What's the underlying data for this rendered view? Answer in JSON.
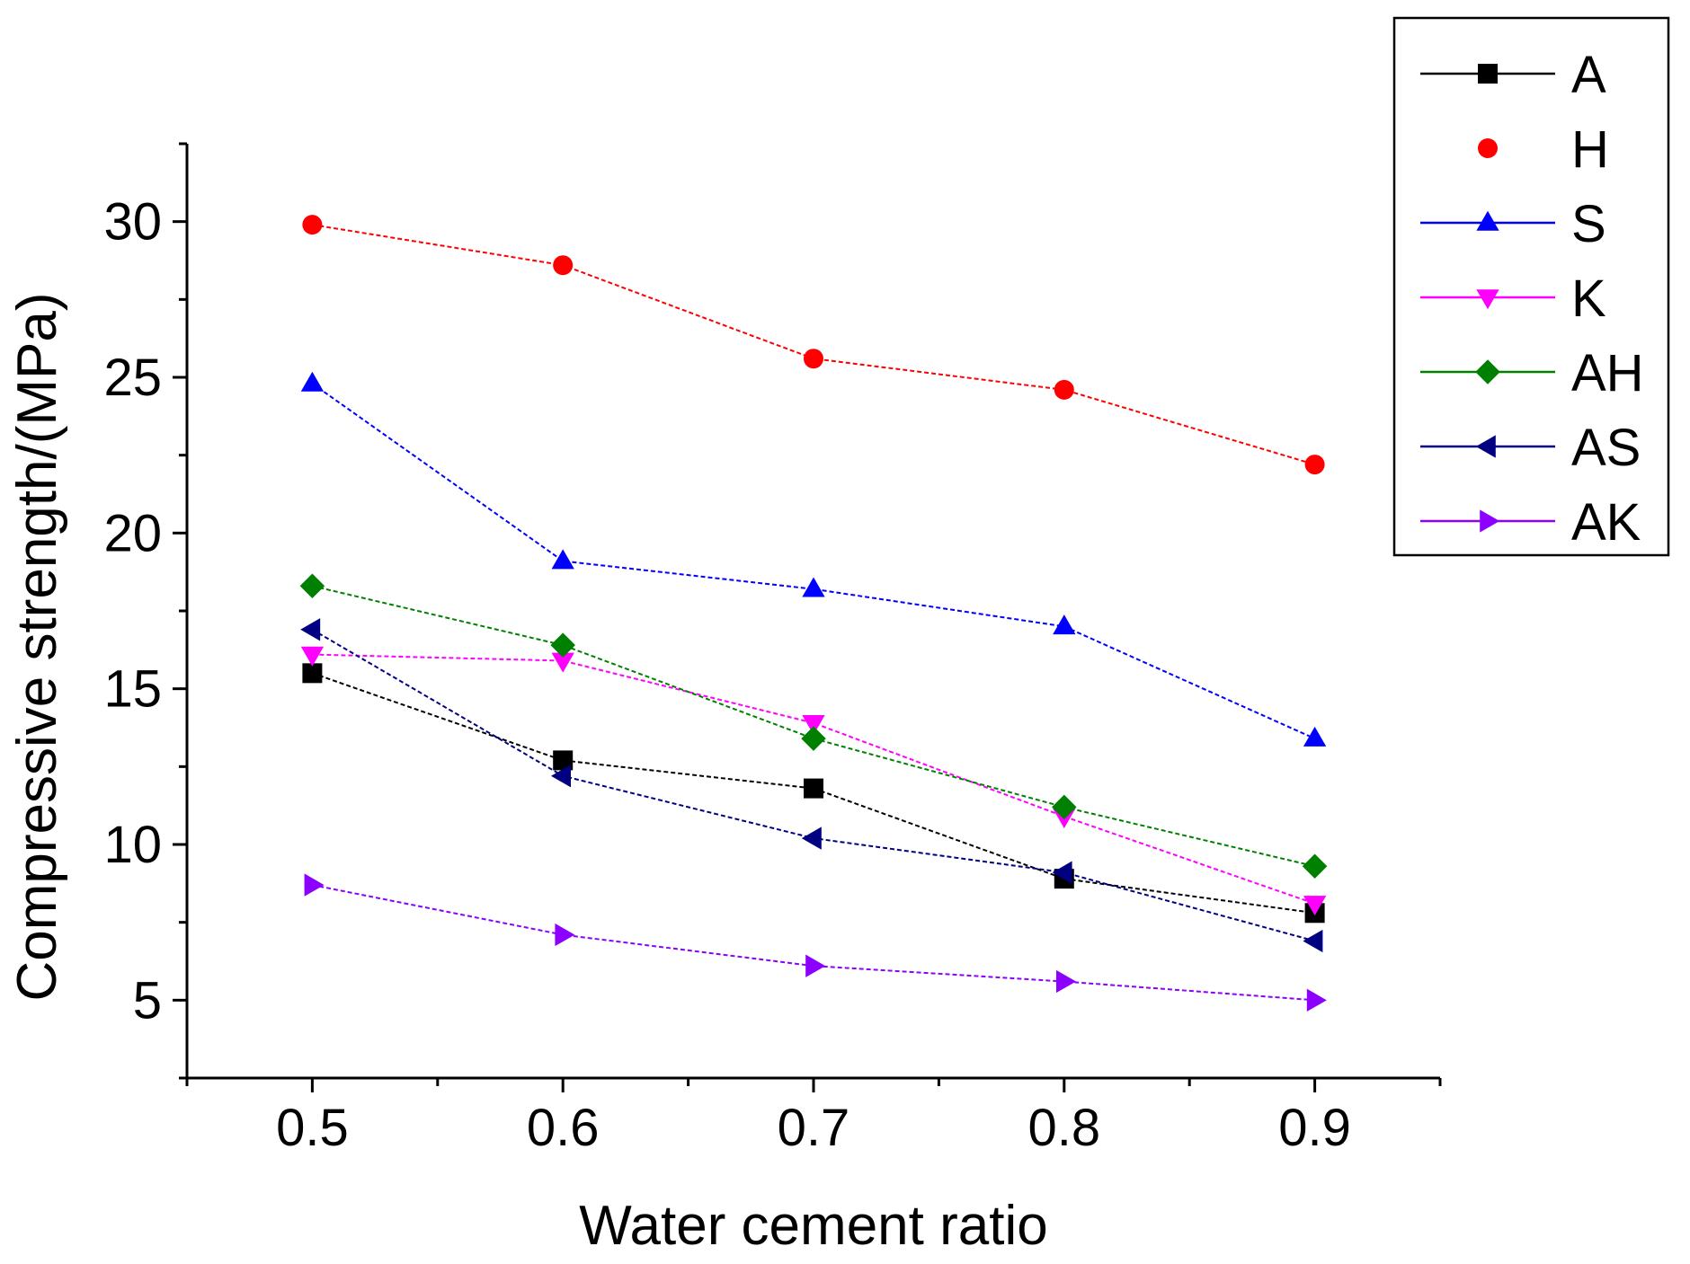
{
  "chart_data": {
    "type": "line",
    "title": "",
    "xlabel": "Water cement ratio",
    "ylabel": "Compressive strength/(MPa)",
    "x": [
      0.5,
      0.6,
      0.7,
      0.8,
      0.9
    ],
    "x_tick_labels": [
      "0.5",
      "0.6",
      "0.7",
      "0.8",
      "0.9"
    ],
    "xlim": [
      0.45,
      0.95
    ],
    "y_ticks": [
      5,
      10,
      15,
      20,
      25,
      30
    ],
    "y_tick_labels": [
      "5",
      "10",
      "15",
      "20",
      "25",
      "30"
    ],
    "ylim": [
      2.5,
      32.5
    ],
    "grid": false,
    "legend_position": "top-right",
    "series": [
      {
        "name": "A",
        "color": "#000000",
        "marker": "square",
        "values": [
          15.5,
          12.7,
          11.8,
          8.9,
          7.8
        ]
      },
      {
        "name": "H",
        "color": "#ff0000",
        "marker": "circle",
        "values": [
          29.9,
          28.6,
          25.6,
          24.6,
          22.2
        ]
      },
      {
        "name": "S",
        "color": "#0000ff",
        "marker": "triangle-up",
        "values": [
          24.8,
          19.1,
          18.2,
          17.0,
          13.4
        ]
      },
      {
        "name": "K",
        "color": "#ff00ff",
        "marker": "triangle-down",
        "values": [
          16.1,
          15.9,
          13.9,
          10.9,
          8.1
        ]
      },
      {
        "name": "AH",
        "color": "#008000",
        "marker": "diamond",
        "values": [
          18.3,
          16.4,
          13.4,
          11.2,
          9.3
        ]
      },
      {
        "name": "AS",
        "color": "#000080",
        "marker": "triangle-left",
        "values": [
          16.9,
          12.2,
          10.2,
          9.1,
          6.9
        ]
      },
      {
        "name": "AK",
        "color": "#8b00ff",
        "marker": "triangle-right",
        "values": [
          8.7,
          7.1,
          6.1,
          5.6,
          5.0
        ]
      }
    ]
  }
}
